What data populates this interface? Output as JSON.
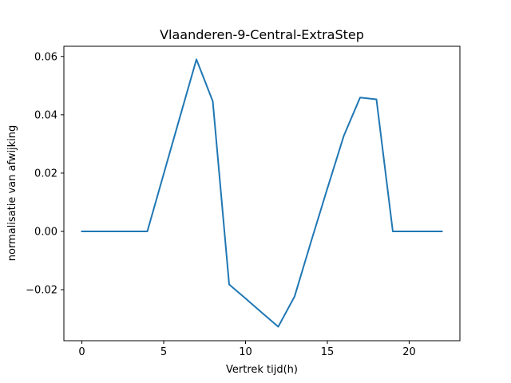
{
  "chart_data": {
    "type": "line",
    "title": "Vlaanderen-9-Central-ExtraStep",
    "xlabel": "Vertrek tijd(h)",
    "ylabel": "normalisatie van afwijking",
    "xlim": [
      -1.1,
      23.1
    ],
    "ylim": [
      -0.0375,
      0.0635
    ],
    "xticks": [
      0,
      5,
      10,
      15,
      20
    ],
    "xtick_labels": [
      "0",
      "5",
      "10",
      "15",
      "20"
    ],
    "yticks": [
      -0.02,
      0.0,
      0.02,
      0.04,
      0.06
    ],
    "ytick_labels": [
      "−0.02",
      "0.00",
      "0.02",
      "0.04",
      "0.06"
    ],
    "grid": false,
    "series": [
      {
        "color": "#1f77b4",
        "x": [
          0,
          1,
          2,
          3,
          4,
          5,
          6,
          7,
          8,
          9,
          10,
          11,
          12,
          13,
          14,
          15,
          16,
          17,
          18,
          19,
          20,
          21,
          22
        ],
        "y": [
          0.0,
          0.0,
          0.0,
          0.0,
          0.0,
          0.0197,
          0.0394,
          0.059,
          0.0446,
          -0.0182,
          -0.023,
          -0.0279,
          -0.0327,
          -0.0223,
          -0.0036,
          0.0147,
          0.0327,
          0.0459,
          0.0453,
          0.0,
          0.0,
          0.0,
          0.0
        ]
      }
    ]
  }
}
